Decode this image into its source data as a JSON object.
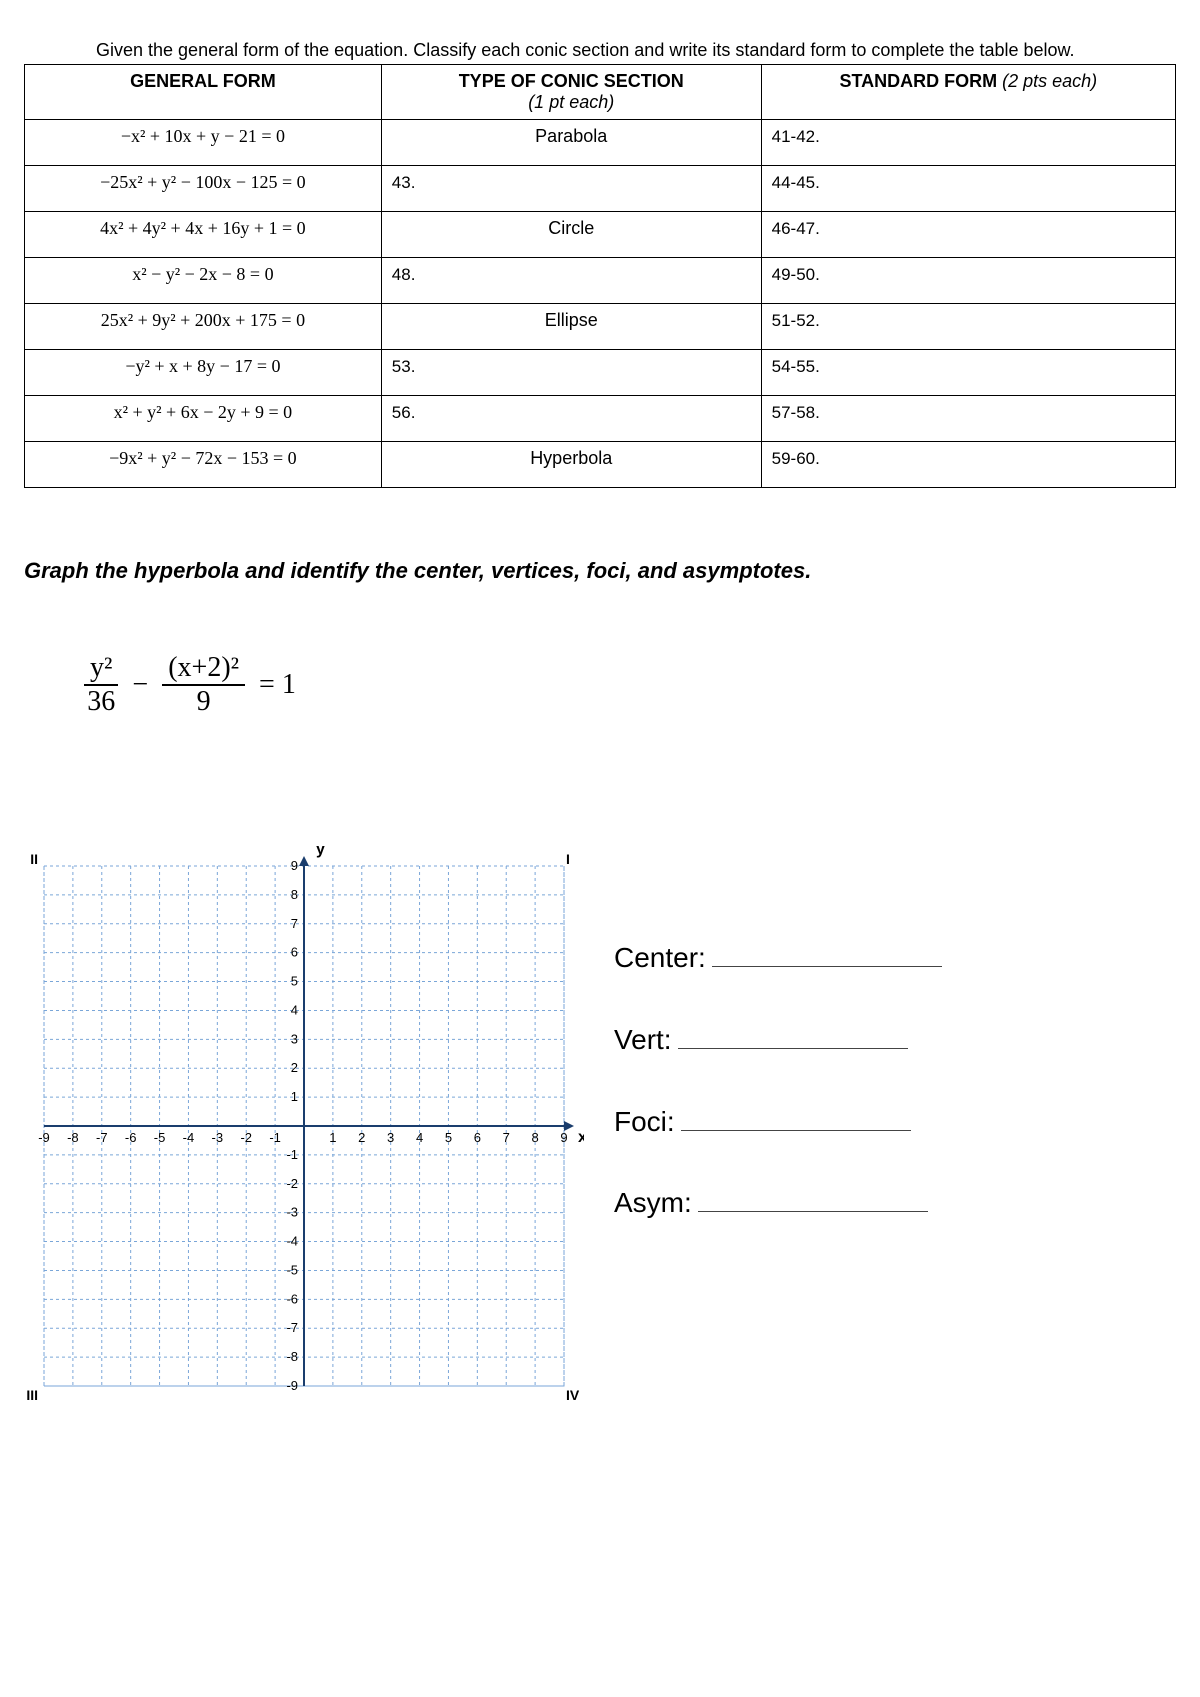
{
  "instructions": "Given the general form of the equation. Classify each conic section and write its standard form to complete the table below.",
  "table": {
    "col_widths": [
      "31%",
      "33%",
      "36%"
    ],
    "headers": {
      "general": "GENERAL FORM",
      "type": "TYPE OF CONIC SECTION",
      "type_sub": "(1 pt each)",
      "standard": "STANDARD FORM",
      "standard_sub": "(2 pts each)"
    },
    "rows": [
      {
        "general": "−x² + 10x + y − 21 = 0",
        "type": "Parabola",
        "type_blank": null,
        "std": "41-42."
      },
      {
        "general": "−25x² + y² − 100x − 125 = 0",
        "type": null,
        "type_blank": "43.",
        "std": "44-45."
      },
      {
        "general": "4x² + 4y² + 4x + 16y + 1 = 0",
        "type": "Circle",
        "type_blank": null,
        "std": "46-47."
      },
      {
        "general": "x² − y² − 2x − 8 = 0",
        "type": null,
        "type_blank": "48.",
        "std": "49-50."
      },
      {
        "general": "25x² + 9y² + 200x + 175 = 0",
        "type": "Ellipse",
        "type_blank": null,
        "std": "51-52."
      },
      {
        "general": "−y² + x + 8y − 17 = 0",
        "type": null,
        "type_blank": "53.",
        "std": "54-55."
      },
      {
        "general": "x² + y² + 6x − 2y + 9 = 0",
        "type": null,
        "type_blank": "56.",
        "std": "57-58."
      },
      {
        "general": "−9x² + y² − 72x − 153 = 0",
        "type": "Hyperbola",
        "type_blank": null,
        "std": "59-60."
      }
    ]
  },
  "prompt2": "Graph the hyperbola and identify the center, vertices, foci, and asymptotes.",
  "equation": {
    "num1": "y²",
    "den1": "36",
    "op": "−",
    "num2": "(x+2)²",
    "den2": "9",
    "rhs": "= 1"
  },
  "grid": {
    "xmin": -9,
    "xmax": 9,
    "ymin": -9,
    "ymax": 9,
    "major_step": 1,
    "grid_color": "#7aa6d8",
    "axis_color": "#1a3d6d",
    "tick_font_size": 13,
    "xticks": [
      -9,
      -8,
      -7,
      -6,
      -5,
      -4,
      -3,
      -2,
      -1,
      1,
      2,
      3,
      4,
      5,
      6,
      7,
      8,
      9
    ],
    "yticks": [
      -9,
      -8,
      -7,
      -6,
      -5,
      -4,
      -3,
      -2,
      -1,
      1,
      2,
      3,
      4,
      5,
      6,
      7,
      8,
      9
    ],
    "x_label": "x",
    "y_label": "y",
    "quadrant_labels": [
      "I",
      "II",
      "III",
      "IV"
    ]
  },
  "answers": {
    "center": "Center:",
    "vert": "Vert:",
    "foci": "Foci:",
    "asym": "Asym:"
  }
}
